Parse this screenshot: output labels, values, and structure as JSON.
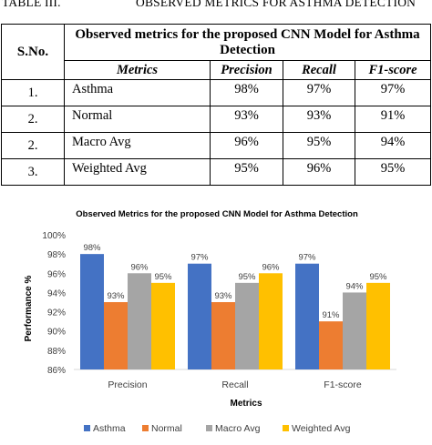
{
  "caption": {
    "number": "TABLE III.",
    "title": "OBSERVED METRICS FOR ASTHMA DETECTION"
  },
  "table": {
    "sno_header": "S.No.",
    "title": "Observed metrics for the proposed CNN Model for Asthma Detection",
    "columns": [
      "Metrics",
      "Precision",
      "Recall",
      "F1-score"
    ],
    "rows": [
      {
        "sno": "1.",
        "name": "Asthma",
        "precision": "98%",
        "recall": "97%",
        "f1": "97%"
      },
      {
        "sno": "2.",
        "name": "Normal",
        "precision": "93%",
        "recall": "93%",
        "f1": "91%"
      },
      {
        "sno": "2.",
        "name": "Macro Avg",
        "precision": "96%",
        "recall": "95%",
        "f1": "94%"
      },
      {
        "sno": "3.",
        "name": "Weighted Avg",
        "precision": "95%",
        "recall": "96%",
        "f1": "95%"
      }
    ]
  },
  "chart_data": {
    "type": "bar",
    "title": "Observed Metrics for the proposed CNN Model for Asthma Detection",
    "xlabel": "Metrics",
    "ylabel": "Performance %",
    "categories": [
      "Precision",
      "Recall",
      "F1-score"
    ],
    "ylim": [
      86,
      100
    ],
    "ytick_values": [
      86,
      88,
      90,
      92,
      94,
      96,
      98,
      100
    ],
    "ytick_labels": [
      "86%",
      "88%",
      "90%",
      "92%",
      "94%",
      "96%",
      "98%",
      "100%"
    ],
    "grid": false,
    "legend_position": "bottom",
    "series": [
      {
        "name": "Asthma",
        "values": [
          98,
          97,
          97
        ],
        "labels": [
          "98%",
          "97%",
          "97%"
        ],
        "color": "#4472C4"
      },
      {
        "name": "Normal",
        "values": [
          93,
          93,
          91
        ],
        "labels": [
          "93%",
          "93%",
          "91%"
        ],
        "color": "#ED7D31"
      },
      {
        "name": "Macro Avg",
        "values": [
          96,
          95,
          94
        ],
        "labels": [
          "96%",
          "95%",
          "94%"
        ],
        "color": "#A5A5A5"
      },
      {
        "name": "Weighted Avg",
        "values": [
          95,
          96,
          95
        ],
        "labels": [
          "95%",
          "96%",
          "95%"
        ],
        "color": "#FFC000"
      }
    ]
  }
}
